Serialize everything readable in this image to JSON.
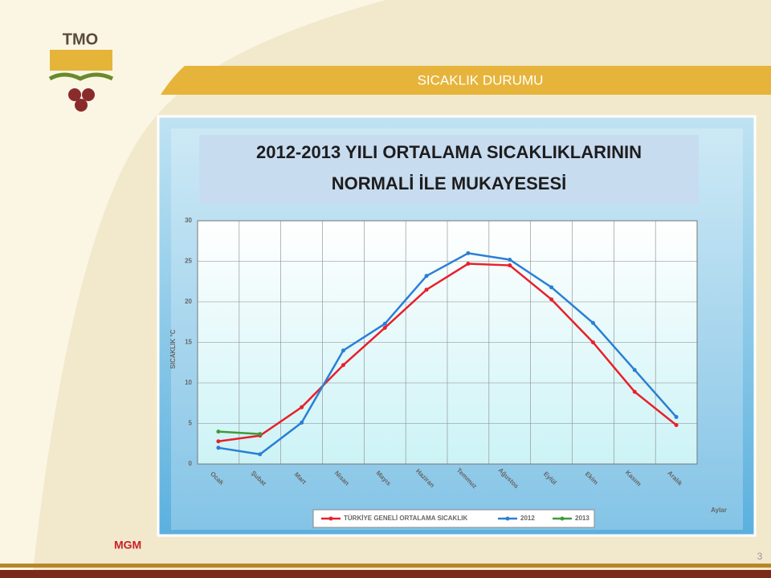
{
  "header": {
    "logo": "TMO",
    "title": "SICAKLIK DURUMU"
  },
  "chart_data": {
    "type": "line",
    "title": [
      "2012-2013 YILI ORTALAMA SICAKLIKLARININ",
      "NORMALİ İLE MUKAYESESİ"
    ],
    "y_label": "SICAKLIK °C",
    "x_label": "Aylar",
    "categories": [
      "Ocak",
      "Şubat",
      "Mart",
      "Nisan",
      "Mayıs",
      "Haziran",
      "Temmuz",
      "Ağustos",
      "Eylül",
      "Ekim",
      "Kasım",
      "Aralık"
    ],
    "series": [
      {
        "name": "TÜRKİYE GENELİ ORTALAMA SICAKLIK",
        "color": "#e8202a",
        "values": [
          2.8,
          3.5,
          7.0,
          12.2,
          16.8,
          21.5,
          24.7,
          24.5,
          20.3,
          15.0,
          8.9,
          4.8
        ]
      },
      {
        "name": "2012",
        "color": "#2a7fd4",
        "values": [
          2.0,
          1.2,
          5.1,
          14.0,
          17.3,
          23.2,
          26.0,
          25.2,
          21.8,
          17.4,
          11.6,
          5.8
        ]
      },
      {
        "name": "2013",
        "color": "#3f9a3a",
        "values": [
          4.0,
          3.7,
          null,
          null,
          null,
          null,
          null,
          null,
          null,
          null,
          null,
          null
        ]
      }
    ],
    "ylim": [
      0,
      30
    ],
    "yticks": [
      0,
      5,
      10,
      15,
      20,
      25,
      30
    ],
    "grid": true,
    "legend": "bottom"
  },
  "footer": {
    "source": "MGM",
    "page": 3
  }
}
